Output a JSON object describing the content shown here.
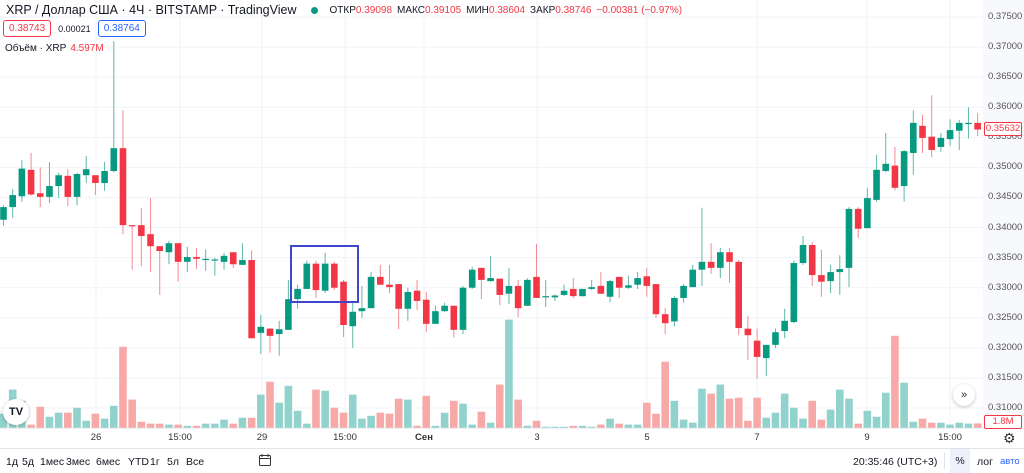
{
  "header": {
    "title": "XRP / Доллар США · 4Ч · BITSTAMP · TradingView",
    "ohlc": [
      {
        "label": "ОТКР",
        "value": "0.39098"
      },
      {
        "label": "МАКС",
        "value": "0.39105"
      },
      {
        "label": "МИН",
        "value": "0.38604"
      },
      {
        "label": "ЗАКР",
        "value": "0.38746"
      },
      {
        "label": "",
        "value": "−0.00381 (−0.97%)"
      }
    ],
    "sell_price": "0.38743",
    "spread": "0.00021",
    "buy_price": "0.38764",
    "volume_label": "Объём · XRP",
    "volume_value": "4.597M"
  },
  "colors": {
    "up": "#089981",
    "down": "#f23645",
    "up_volume": "#92d2cc",
    "down_volume": "#f7a9a7",
    "accent": "#2962ff",
    "drawing": "#3f48cc"
  },
  "price_axis": [
    "0.37500",
    "0.37000",
    "0.36500",
    "0.36000",
    "0.35500",
    "0.35000",
    "0.34500",
    "0.34000",
    "0.33500",
    "0.33000",
    "0.32500",
    "0.32000",
    "0.31500",
    "0.31000"
  ],
  "current_price": "0.35632",
  "current_volume": "1.8M",
  "time_axis": [
    {
      "label": "26",
      "bold": false
    },
    {
      "label": "15:00",
      "bold": false
    },
    {
      "label": "29",
      "bold": false
    },
    {
      "label": "15:00",
      "bold": false
    },
    {
      "label": "Сен",
      "bold": true
    },
    {
      "label": "3",
      "bold": false
    },
    {
      "label": "5",
      "bold": false
    },
    {
      "label": "7",
      "bold": false
    },
    {
      "label": "9",
      "bold": false
    },
    {
      "label": "15:00",
      "bold": false
    }
  ],
  "toolbar": {
    "ranges": [
      "1д",
      "5д",
      "1мес",
      "3мес",
      "6мес",
      "YTD",
      "1г",
      "5л",
      "Все"
    ],
    "clock": "20:35:46 (UTC+3)",
    "percent": "%",
    "log": "лог",
    "auto": "авто"
  },
  "logo": "TV",
  "chart_data": {
    "type": "candlestick",
    "ylim": [
      0.3075,
      0.3775
    ],
    "candles_ohlcv": [
      [
        0.3413,
        0.3437,
        0.3403,
        0.3434,
        5.9
      ],
      [
        0.3434,
        0.3464,
        0.3416,
        0.3454,
        16.0
      ],
      [
        0.3452,
        0.3512,
        0.3443,
        0.3498,
        11.3
      ],
      [
        0.3496,
        0.3524,
        0.3453,
        0.3455,
        1.3
      ],
      [
        0.3457,
        0.35,
        0.3434,
        0.3451,
        8.8
      ],
      [
        0.3451,
        0.3509,
        0.3441,
        0.3469,
        4.6
      ],
      [
        0.3469,
        0.3491,
        0.3449,
        0.3487,
        6.3
      ],
      [
        0.3486,
        0.3497,
        0.3436,
        0.3451,
        6.3
      ],
      [
        0.3451,
        0.3491,
        0.3437,
        0.3489,
        8.4
      ],
      [
        0.3487,
        0.3519,
        0.3474,
        0.3497,
        2.9
      ],
      [
        0.3487,
        0.3487,
        0.3454,
        0.3474,
        5.9
      ],
      [
        0.3474,
        0.3509,
        0.3461,
        0.3494,
        3.8
      ],
      [
        0.3494,
        0.371,
        0.3492,
        0.3532,
        9.2
      ],
      [
        0.3532,
        0.3595,
        0.3389,
        0.3404,
        34.0
      ],
      [
        0.3404,
        0.3404,
        0.333,
        0.3402,
        11.8
      ],
      [
        0.3404,
        0.3432,
        0.3336,
        0.3386,
        2.5
      ],
      [
        0.3389,
        0.3449,
        0.3326,
        0.3369,
        1.7
      ],
      [
        0.3369,
        0.3369,
        0.3288,
        0.3361,
        1.7
      ],
      [
        0.3359,
        0.3378,
        0.3339,
        0.3374,
        1.3
      ],
      [
        0.3374,
        0.3374,
        0.331,
        0.3343,
        1.3
      ],
      [
        0.3343,
        0.3368,
        0.3326,
        0.3351,
        0.8
      ],
      [
        0.3351,
        0.3366,
        0.3331,
        0.3348,
        0.8
      ],
      [
        0.3346,
        0.3364,
        0.3328,
        0.3348,
        1.7
      ],
      [
        0.3345,
        0.335,
        0.332,
        0.3347,
        1.7
      ],
      [
        0.3343,
        0.3358,
        0.333,
        0.3353,
        3.4
      ],
      [
        0.3359,
        0.3359,
        0.3333,
        0.3339,
        1.7
      ],
      [
        0.3338,
        0.3374,
        0.3338,
        0.3346,
        4.2
      ],
      [
        0.3346,
        0.3362,
        0.3216,
        0.3216,
        4.2
      ],
      [
        0.3225,
        0.3255,
        0.319,
        0.3235,
        13.9
      ],
      [
        0.3232,
        0.3233,
        0.3192,
        0.322,
        19.3
      ],
      [
        0.3223,
        0.3245,
        0.3187,
        0.3231,
        10.5
      ],
      [
        0.323,
        0.3313,
        0.323,
        0.3281,
        17.6
      ],
      [
        0.3281,
        0.3305,
        0.3265,
        0.3298,
        7.1
      ],
      [
        0.3298,
        0.3345,
        0.3298,
        0.334,
        1.7
      ],
      [
        0.334,
        0.3345,
        0.3283,
        0.3296,
        16.0
      ],
      [
        0.3295,
        0.3358,
        0.3291,
        0.334,
        15.5
      ],
      [
        0.334,
        0.3343,
        0.3296,
        0.33,
        8.4
      ],
      [
        0.331,
        0.3313,
        0.3218,
        0.3238,
        6.3
      ],
      [
        0.3236,
        0.3276,
        0.32,
        0.326,
        13.9
      ],
      [
        0.3261,
        0.3303,
        0.325,
        0.3266,
        3.8
      ],
      [
        0.3266,
        0.3326,
        0.3266,
        0.3318,
        5.0
      ],
      [
        0.3318,
        0.3338,
        0.3305,
        0.3305,
        6.3
      ],
      [
        0.3305,
        0.3338,
        0.3291,
        0.3301,
        5.9
      ],
      [
        0.3306,
        0.3306,
        0.3231,
        0.3265,
        12.2
      ],
      [
        0.3265,
        0.33,
        0.3245,
        0.3293,
        11.8
      ],
      [
        0.3295,
        0.3313,
        0.3263,
        0.3278,
        0.8
      ],
      [
        0.328,
        0.3293,
        0.3226,
        0.324,
        13.4
      ],
      [
        0.324,
        0.327,
        0.324,
        0.3261,
        0.8
      ],
      [
        0.3261,
        0.3275,
        0.326,
        0.327,
        6.3
      ],
      [
        0.327,
        0.327,
        0.3217,
        0.323,
        11.3
      ],
      [
        0.323,
        0.3303,
        0.3223,
        0.33,
        10.1
      ],
      [
        0.33,
        0.3335,
        0.3298,
        0.333,
        1.3
      ],
      [
        0.3333,
        0.3333,
        0.3281,
        0.3313,
        6.7
      ],
      [
        0.3311,
        0.3353,
        0.331,
        0.3316,
        2.1
      ],
      [
        0.3315,
        0.3315,
        0.3271,
        0.3288,
        18.1
      ],
      [
        0.329,
        0.3333,
        0.3273,
        0.3303,
        45.4
      ],
      [
        0.3303,
        0.3313,
        0.3251,
        0.3266,
        11.8
      ],
      [
        0.327,
        0.3316,
        0.327,
        0.3313,
        0.8
      ],
      [
        0.3318,
        0.3373,
        0.3283,
        0.3283,
        2.9
      ],
      [
        0.3284,
        0.3313,
        0.3268,
        0.3286,
        0.4
      ],
      [
        0.3284,
        0.3289,
        0.3278,
        0.3287,
        0.4
      ],
      [
        0.3288,
        0.3305,
        0.3286,
        0.3295,
        0.4
      ],
      [
        0.3298,
        0.3316,
        0.3283,
        0.3286,
        0.8
      ],
      [
        0.3286,
        0.3298,
        0.3285,
        0.3298,
        0.8
      ],
      [
        0.3298,
        0.3313,
        0.3296,
        0.3301,
        0.4
      ],
      [
        0.3303,
        0.3326,
        0.329,
        0.329,
        1.3
      ],
      [
        0.3285,
        0.3313,
        0.3276,
        0.3311,
        3.8
      ],
      [
        0.3318,
        0.3318,
        0.3283,
        0.33,
        1.7
      ],
      [
        0.33,
        0.332,
        0.3298,
        0.3304,
        1.3
      ],
      [
        0.3305,
        0.3326,
        0.3298,
        0.3316,
        1.3
      ],
      [
        0.3319,
        0.3333,
        0.3285,
        0.3303,
        10.5
      ],
      [
        0.3306,
        0.3306,
        0.325,
        0.3256,
        5.9
      ],
      [
        0.3256,
        0.3266,
        0.3223,
        0.3241,
        27.7
      ],
      [
        0.3244,
        0.3286,
        0.3236,
        0.3283,
        11.3
      ],
      [
        0.3283,
        0.3306,
        0.3275,
        0.3303,
        3.4
      ],
      [
        0.3301,
        0.3338,
        0.3301,
        0.333,
        2.1
      ],
      [
        0.333,
        0.3433,
        0.3303,
        0.3343,
        16.4
      ],
      [
        0.3343,
        0.3374,
        0.3323,
        0.3333,
        14.3
      ],
      [
        0.3333,
        0.3366,
        0.3316,
        0.3359,
        18.1
      ],
      [
        0.3359,
        0.3366,
        0.3308,
        0.3343,
        12.2
      ],
      [
        0.3343,
        0.3346,
        0.3221,
        0.3233,
        12.6
      ],
      [
        0.3232,
        0.3253,
        0.318,
        0.3221,
        2.9
      ],
      [
        0.3212,
        0.3232,
        0.3148,
        0.3185,
        12.6
      ],
      [
        0.3183,
        0.3205,
        0.3153,
        0.3205,
        4.2
      ],
      [
        0.3205,
        0.3232,
        0.32,
        0.3226,
        6.3
      ],
      [
        0.3228,
        0.3265,
        0.3216,
        0.3245,
        14.3
      ],
      [
        0.3243,
        0.3345,
        0.3241,
        0.3341,
        8.4
      ],
      [
        0.3341,
        0.3386,
        0.3338,
        0.3371,
        3.8
      ],
      [
        0.3371,
        0.3376,
        0.3303,
        0.3321,
        11.3
      ],
      [
        0.3321,
        0.3363,
        0.3285,
        0.331,
        3.4
      ],
      [
        0.3311,
        0.3338,
        0.3291,
        0.3326,
        7.6
      ],
      [
        0.3326,
        0.3354,
        0.3288,
        0.3331,
        16.0
      ],
      [
        0.3333,
        0.3434,
        0.3301,
        0.3431,
        12.2
      ],
      [
        0.3431,
        0.3434,
        0.3383,
        0.3398,
        1.7
      ],
      [
        0.3399,
        0.3466,
        0.3399,
        0.3449,
        7.1
      ],
      [
        0.3446,
        0.3521,
        0.3443,
        0.3496,
        4.6
      ],
      [
        0.3494,
        0.3557,
        0.3492,
        0.3506,
        14.7
      ],
      [
        0.3503,
        0.3534,
        0.3462,
        0.3466,
        38.6
      ],
      [
        0.3469,
        0.3529,
        0.3443,
        0.3527,
        18.9
      ],
      [
        0.3524,
        0.3595,
        0.3488,
        0.3574,
        2.5
      ],
      [
        0.3569,
        0.3587,
        0.3524,
        0.3549,
        3.8
      ],
      [
        0.3551,
        0.362,
        0.3517,
        0.3529,
        2.1
      ],
      [
        0.3534,
        0.3557,
        0.3526,
        0.3549,
        2.1
      ],
      [
        0.3547,
        0.358,
        0.3536,
        0.3562,
        1.3
      ],
      [
        0.3561,
        0.3579,
        0.3529,
        0.3574,
        2.1
      ],
      [
        0.3573,
        0.36,
        0.3548,
        0.3574,
        1.7
      ],
      [
        0.3574,
        0.359,
        0.3552,
        0.3563,
        1.8
      ]
    ],
    "volume_unit": "M",
    "grid": true
  }
}
